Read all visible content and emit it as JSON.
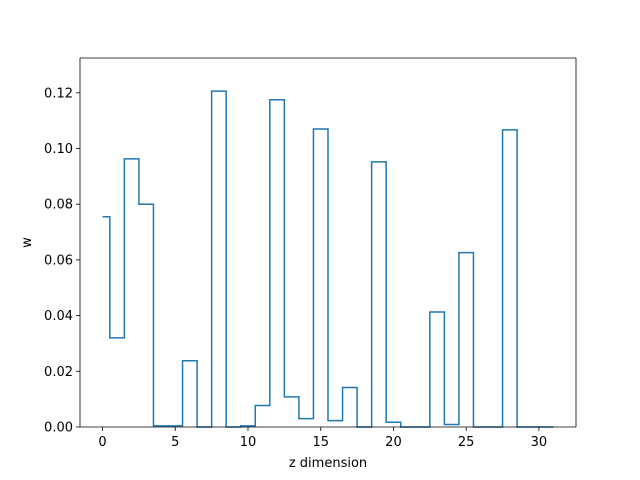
{
  "chart_data": {
    "type": "line",
    "drawstyle": "steps-mid",
    "xlabel": "z dimension",
    "ylabel": "w",
    "xlim": [
      -1.55,
      32.55
    ],
    "ylim": [
      0.0,
      0.1325
    ],
    "xticks": [
      0,
      5,
      10,
      15,
      20,
      25,
      30
    ],
    "xtick_labels": [
      "0",
      "5",
      "10",
      "15",
      "20",
      "25",
      "30"
    ],
    "yticks": [
      0.0,
      0.02,
      0.04,
      0.06,
      0.08,
      0.1,
      0.12
    ],
    "ytick_labels": [
      "0.00",
      "0.02",
      "0.04",
      "0.06",
      "0.08",
      "0.10",
      "0.12"
    ],
    "grid": false,
    "line_color": "#1f77b4",
    "series": [
      {
        "x": [
          0,
          1,
          2,
          3,
          4,
          5,
          6,
          7,
          8,
          9,
          10,
          11,
          12,
          13,
          14,
          15,
          16,
          17,
          18,
          19,
          20,
          21,
          22,
          23,
          24,
          25,
          26,
          27,
          28,
          29,
          30,
          31
        ],
        "values": [
          0.0755,
          0.032,
          0.0963,
          0.08,
          0.0004,
          0.0004,
          0.0238,
          0.0,
          0.1206,
          0.0,
          0.0004,
          0.0077,
          0.1175,
          0.0108,
          0.003,
          0.107,
          0.0023,
          0.0142,
          0.0,
          0.0952,
          0.0017,
          0.0,
          0.0,
          0.0413,
          0.0009,
          0.0626,
          0.0,
          0.0,
          0.1067,
          0.0,
          0.0,
          0.0
        ]
      }
    ]
  }
}
